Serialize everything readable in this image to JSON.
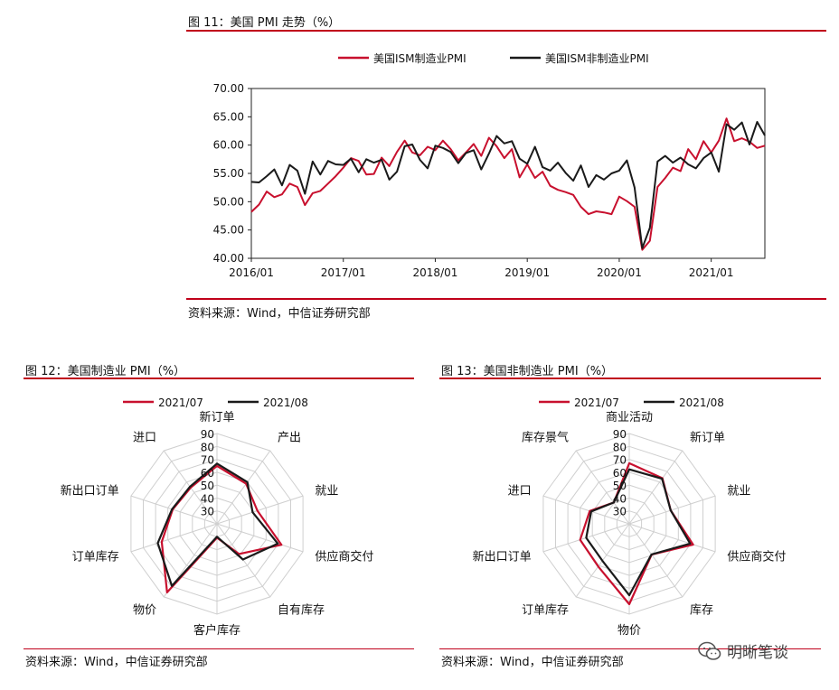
{
  "figures": {
    "fig11": {
      "title": "图 11：美国 PMI 走势（%）",
      "source": "资料来源：Wind，中信证券研究部"
    },
    "fig12": {
      "title": "图 12：美国制造业 PMI（%）",
      "source": "资料来源：Wind，中信证券研究部"
    },
    "fig13": {
      "title": "图 13：美国非制造业 PMI（%）",
      "source": "资料来源：Wind，中信证券研究部"
    }
  },
  "watermark": {
    "text": "明晰笔谈"
  },
  "colors": {
    "red": "#c8102e",
    "black": "#1a1a1a",
    "rule": "#c0001a",
    "grid": "#cccccc"
  },
  "chart_data": [
    {
      "type": "line",
      "x_start": "2016-01",
      "x_ticks": [
        "2016/01",
        "2017/01",
        "2018/01",
        "2019/01",
        "2020/01",
        "2021/01"
      ],
      "ylim": [
        40,
        70
      ],
      "y_ticks": [
        "40.00",
        "45.00",
        "50.00",
        "55.00",
        "60.00",
        "65.00",
        "70.00"
      ],
      "legend_position": "top",
      "series": [
        {
          "name": "美国ISM制造业PMI",
          "color": "#c8102e",
          "values": [
            48.2,
            49.5,
            51.8,
            50.8,
            51.3,
            53.2,
            52.6,
            49.4,
            51.5,
            51.9,
            53.2,
            54.5,
            56.0,
            57.7,
            57.2,
            54.8,
            54.9,
            57.8,
            56.3,
            58.8,
            60.8,
            58.7,
            58.2,
            59.7,
            59.1,
            60.8,
            59.3,
            57.3,
            58.7,
            60.2,
            58.1,
            61.3,
            59.8,
            57.7,
            59.3,
            54.3,
            56.6,
            54.2,
            55.3,
            52.8,
            52.1,
            51.7,
            51.2,
            49.1,
            47.8,
            48.3,
            48.1,
            47.8,
            50.9,
            50.1,
            49.1,
            41.5,
            43.1,
            52.6,
            54.2,
            56.0,
            55.4,
            59.3,
            57.5,
            60.7,
            58.7,
            60.8,
            64.7,
            60.7,
            61.2,
            60.6,
            59.5,
            59.9
          ]
        },
        {
          "name": "美国ISM非制造业PMI",
          "color": "#1a1a1a",
          "values": [
            53.5,
            53.4,
            54.5,
            55.7,
            52.9,
            56.5,
            55.5,
            51.4,
            57.1,
            54.8,
            57.2,
            56.6,
            56.5,
            57.6,
            55.2,
            57.5,
            56.9,
            57.4,
            53.9,
            55.3,
            59.8,
            60.1,
            57.4,
            55.9,
            59.9,
            59.5,
            58.8,
            56.8,
            58.6,
            59.1,
            55.7,
            58.5,
            61.6,
            60.3,
            60.7,
            57.6,
            56.7,
            59.7,
            56.1,
            55.5,
            56.9,
            55.1,
            53.7,
            56.4,
            52.6,
            54.7,
            53.9,
            55.0,
            55.5,
            57.3,
            52.5,
            41.8,
            45.4,
            57.1,
            58.1,
            56.9,
            57.8,
            56.6,
            55.9,
            57.7,
            58.7,
            55.3,
            63.7,
            62.7,
            64.0,
            60.1,
            64.1,
            61.7
          ]
        }
      ]
    },
    {
      "type": "radar",
      "rmin": 20,
      "rmax": 90,
      "r_ticks": [
        30,
        40,
        50,
        60,
        70,
        80,
        90
      ],
      "legend_position": "top",
      "axes": [
        "新订单",
        "产出",
        "就业",
        "供应商交付",
        "自有库存",
        "客户库存",
        "物价",
        "订单库存",
        "新出口订单",
        "进口"
      ],
      "series": [
        {
          "name": "2021/07",
          "color": "#c8102e",
          "values": [
            64.9,
            58.4,
            52.9,
            72.5,
            48.9,
            30.8,
            85.7,
            65.0,
            56.1,
            54.7
          ]
        },
        {
          "name": "2021/08",
          "color": "#1a1a1a",
          "values": [
            66.7,
            60.0,
            49.0,
            69.5,
            54.2,
            30.0,
            79.4,
            68.2,
            56.6,
            55.6
          ]
        }
      ]
    },
    {
      "type": "radar",
      "rmin": 20,
      "rmax": 90,
      "r_ticks": [
        30,
        40,
        50,
        60,
        70,
        80,
        90
      ],
      "legend_position": "top",
      "axes": [
        "商业活动",
        "新订单",
        "就业",
        "供应商交付",
        "库存",
        "物价",
        "订单库存",
        "新出口订单",
        "进口",
        "库存景气"
      ],
      "series": [
        {
          "name": "2021/07",
          "color": "#c8102e",
          "values": [
            67.0,
            63.7,
            53.8,
            72.0,
            49.5,
            82.3,
            60.9,
            60.0,
            52.2,
            40.4
          ]
        },
        {
          "name": "2021/08",
          "color": "#1a1a1a",
          "values": [
            62.2,
            63.2,
            53.7,
            69.6,
            49.3,
            75.4,
            55.4,
            55.0,
            51.0,
            40.4
          ]
        }
      ]
    }
  ]
}
